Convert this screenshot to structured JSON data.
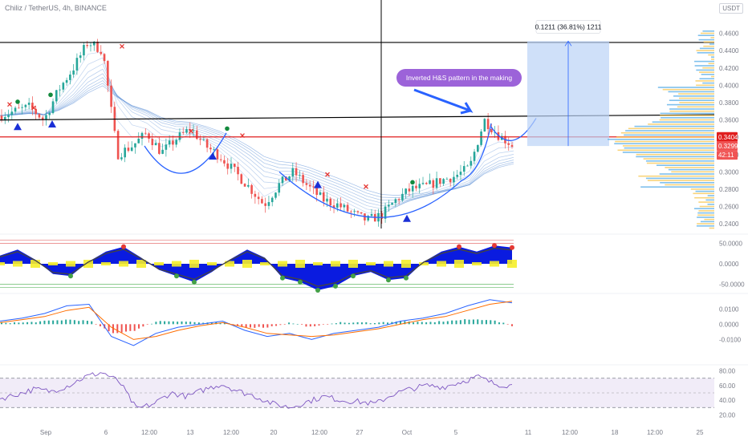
{
  "header": {
    "title": "Chiliz / TetherUS, 4h, BINANCE",
    "currency": "USDT"
  },
  "colors": {
    "bull": "#26a69a",
    "bear": "#ef5350",
    "ema": "#5b8fd6",
    "pattern_curve": "#2962ff",
    "annotation_bg": "#9c63d9",
    "projection_bg": "#bbd3f7",
    "vp_blue": "#5fb0e8",
    "vp_yellow": "#f7c95a",
    "rsi": "#7e57c2",
    "macd": "#2962ff",
    "signal": "#ff6d00"
  },
  "annotations": {
    "pattern_label": "Inverted H&S pattern in the making",
    "measure_label": "0.1211 (36.81%) 1211"
  },
  "chart_data": [
    {
      "type": "candlestick",
      "title": "Chiliz / TetherUS, 4h, BINANCE",
      "ylim": [
        0.23,
        0.48
      ],
      "y_ticks": [
        0.24,
        0.26,
        0.28,
        0.3,
        0.32,
        0.34,
        0.36,
        0.38,
        0.4,
        0.42,
        0.44,
        0.46
      ],
      "y_tick_labels": [
        "0.2400",
        "0.2600",
        "0.2800",
        "0.3000",
        "0.3200",
        "0.3400",
        "0.3600",
        "0.3800",
        "0.4000",
        "0.4200",
        "0.4400",
        "0.4600"
      ],
      "x_tick_labels": [
        "Sep",
        "6",
        "12:00",
        "13",
        "12:00",
        "20",
        "12:00",
        "27",
        "Oct",
        "5",
        "11",
        "12:00",
        "18",
        "12:00",
        "25"
      ],
      "price_path": [
        [
          "Sep 1",
          0.365
        ],
        [
          "Sep 2",
          0.37
        ],
        [
          "Sep 3",
          0.375
        ],
        [
          "Sep 4",
          0.36
        ],
        [
          "Sep 5",
          0.395
        ],
        [
          "Sep 6",
          0.42
        ],
        [
          "Sep 7",
          0.45
        ],
        [
          "Sep 8",
          0.44
        ],
        [
          "Sep 9",
          0.32
        ],
        [
          "Sep 10",
          0.33
        ],
        [
          "Sep 12",
          0.345
        ],
        [
          "Sep 13",
          0.322
        ],
        [
          "Sep 15",
          0.338
        ],
        [
          "Sep 16",
          0.35
        ],
        [
          "Sep 17",
          0.33
        ],
        [
          "Sep 18",
          0.318
        ],
        [
          "Sep 19",
          0.3
        ],
        [
          "Sep 20",
          0.282
        ],
        [
          "Sep 21",
          0.262
        ],
        [
          "Sep 22",
          0.285
        ],
        [
          "Sep 23",
          0.3
        ],
        [
          "Sep 24",
          0.283
        ],
        [
          "Sep 25",
          0.268
        ],
        [
          "Sep 26",
          0.262
        ],
        [
          "Sep 27",
          0.252
        ],
        [
          "Sep 28",
          0.244
        ],
        [
          "Sep 29",
          0.25
        ],
        [
          "Sep 30",
          0.268
        ],
        [
          "Oct 1",
          0.28
        ],
        [
          "Oct 2",
          0.283
        ],
        [
          "Oct 3",
          0.29
        ],
        [
          "Oct 4",
          0.295
        ],
        [
          "Oct 5",
          0.305
        ],
        [
          "Oct 6",
          0.36
        ],
        [
          "Oct 7",
          0.342
        ],
        [
          "Oct 8",
          0.33
        ]
      ],
      "horizontal_levels": {
        "resistance_top": 0.4495,
        "last_price": 0.3404,
        "current": 0.3299
      },
      "neckline": [
        [
          0.356,
          0.358
        ]
      ],
      "price_tags": {
        "last": "0.3404",
        "current": "0.3299",
        "timer": "42:11"
      },
      "measure": {
        "from": 0.3299,
        "to": 0.451,
        "change": 0.1211,
        "change_pct": 36.81
      },
      "markers": {
        "up_triangles": 6,
        "sell_crosses": 7,
        "buy_dots": 4
      },
      "volume_profile": "shown right side, blue and yellow histogram"
    },
    {
      "type": "area",
      "title": "",
      "ylim": [
        -65,
        65
      ],
      "y_ticks": [
        50,
        0,
        -50
      ],
      "y_tick_labels": [
        "50.0000",
        "0.0000",
        "-50.0000"
      ],
      "oscillator": [
        20,
        35,
        10,
        -25,
        -30,
        5,
        30,
        42,
        15,
        -15,
        -30,
        -45,
        -20,
        10,
        35,
        15,
        -35,
        -45,
        -65,
        -55,
        -30,
        -20,
        -40,
        -35,
        5,
        30,
        42,
        30,
        45,
        40
      ]
    },
    {
      "type": "line",
      "title": "",
      "ylim": [
        -0.025,
        0.018
      ],
      "y_ticks": [
        0.01,
        0.0,
        -0.01
      ],
      "y_tick_labels": [
        "0.0100",
        "0.0000",
        "-0.0100"
      ],
      "series": [
        {
          "values": [
            0.002,
            0.004,
            0.007,
            0.012,
            0.013,
            -0.008,
            -0.014,
            -0.006,
            -0.002,
            0.0,
            0.002,
            -0.004,
            -0.008,
            -0.006,
            -0.01,
            -0.006,
            -0.004,
            -0.002,
            0.002,
            0.004,
            0.007,
            0.012,
            0.016,
            0.014
          ]
        },
        {
          "values": [
            0.001,
            0.003,
            0.005,
            0.009,
            0.011,
            -0.002,
            -0.01,
            -0.008,
            -0.004,
            -0.001,
            0.001,
            -0.002,
            -0.006,
            -0.007,
            -0.008,
            -0.007,
            -0.005,
            -0.003,
            0.0,
            0.003,
            0.005,
            0.009,
            0.013,
            0.015
          ]
        }
      ],
      "histogram": [
        0.001,
        0.001,
        0.002,
        0.003,
        0.002,
        -0.006,
        -0.004,
        0.002,
        0.002,
        0.001,
        0.001,
        -0.002,
        -0.002,
        0.001,
        -0.002,
        0.001,
        0.001,
        0.001,
        0.002,
        0.001,
        0.002,
        0.003,
        0.003,
        -0.001
      ]
    },
    {
      "type": "line",
      "title": "",
      "ylim": [
        15,
        85
      ],
      "y_ticks": [
        80,
        60,
        40,
        20
      ],
      "y_tick_labels": [
        "80.00",
        "60.00",
        "40.00",
        "20.00"
      ],
      "band": [
        30,
        70
      ],
      "series": [
        {
          "values": [
            42,
            48,
            55,
            52,
            60,
            72,
            78,
            65,
            28,
            35,
            50,
            45,
            55,
            62,
            52,
            45,
            35,
            30,
            38,
            45,
            40,
            38,
            35,
            48,
            55,
            60,
            58,
            65,
            72,
            62,
            60
          ]
        }
      ]
    }
  ]
}
